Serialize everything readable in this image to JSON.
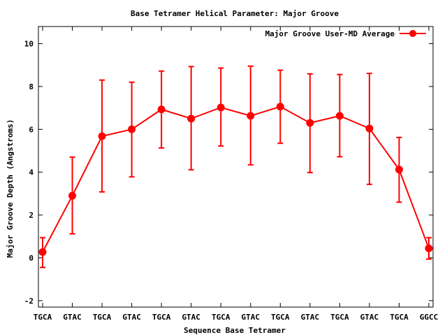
{
  "chart_data": {
    "type": "line",
    "title": "Base Tetramer Helical Parameter: Major Groove",
    "xlabel": "Sequence Base Tetramer",
    "ylabel": "Major Groove Depth (Angstroms)",
    "categories": [
      "TGCA",
      "GTAC",
      "TGCA",
      "GTAC",
      "TGCA",
      "GTAC",
      "TGCA",
      "GTAC",
      "TGCA",
      "GTAC",
      "TGCA",
      "GTAC",
      "TGCA",
      "GGCC"
    ],
    "ylim": [
      -2.3,
      10.8
    ],
    "yticks": [
      "-2",
      "0",
      "2",
      "4",
      "6",
      "8",
      "10"
    ],
    "grid": false,
    "legend_position": "top-right",
    "series": [
      {
        "name": "Major Groove User-MD Average",
        "color": "#ff0000",
        "values": [
          0.27,
          2.9,
          5.68,
          6.0,
          6.93,
          6.5,
          7.02,
          6.63,
          7.06,
          6.3,
          6.63,
          6.04,
          4.12,
          0.44
        ],
        "error_low": [
          -0.45,
          1.12,
          3.08,
          3.78,
          5.13,
          4.11,
          5.22,
          4.34,
          5.35,
          3.98,
          4.72,
          3.43,
          2.6,
          -0.06
        ],
        "error_high": [
          0.94,
          4.7,
          8.3,
          8.2,
          8.72,
          8.93,
          8.86,
          8.95,
          8.76,
          8.59,
          8.56,
          8.61,
          5.62,
          0.94
        ]
      }
    ]
  }
}
